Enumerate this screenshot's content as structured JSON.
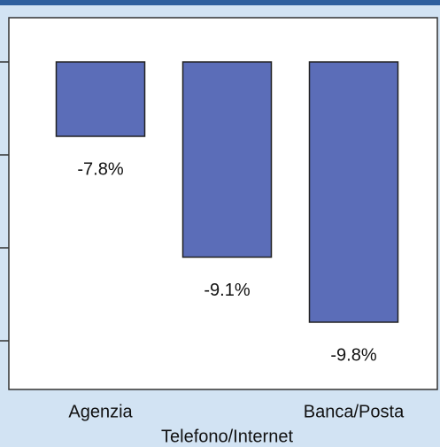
{
  "chart_data": {
    "type": "bar",
    "categories": [
      "Agenzia",
      "Telefono/Internet",
      "Banca/Posta"
    ],
    "values": [
      -7.8,
      -9.1,
      -9.8
    ],
    "value_labels": [
      "-7.8%",
      "-9.1%",
      "-9.8%"
    ],
    "color": "#5b6db8",
    "base": -7,
    "ylim": [
      -10.5,
      -6.5
    ],
    "yticks": [
      -7,
      -8,
      -9,
      -10
    ]
  }
}
